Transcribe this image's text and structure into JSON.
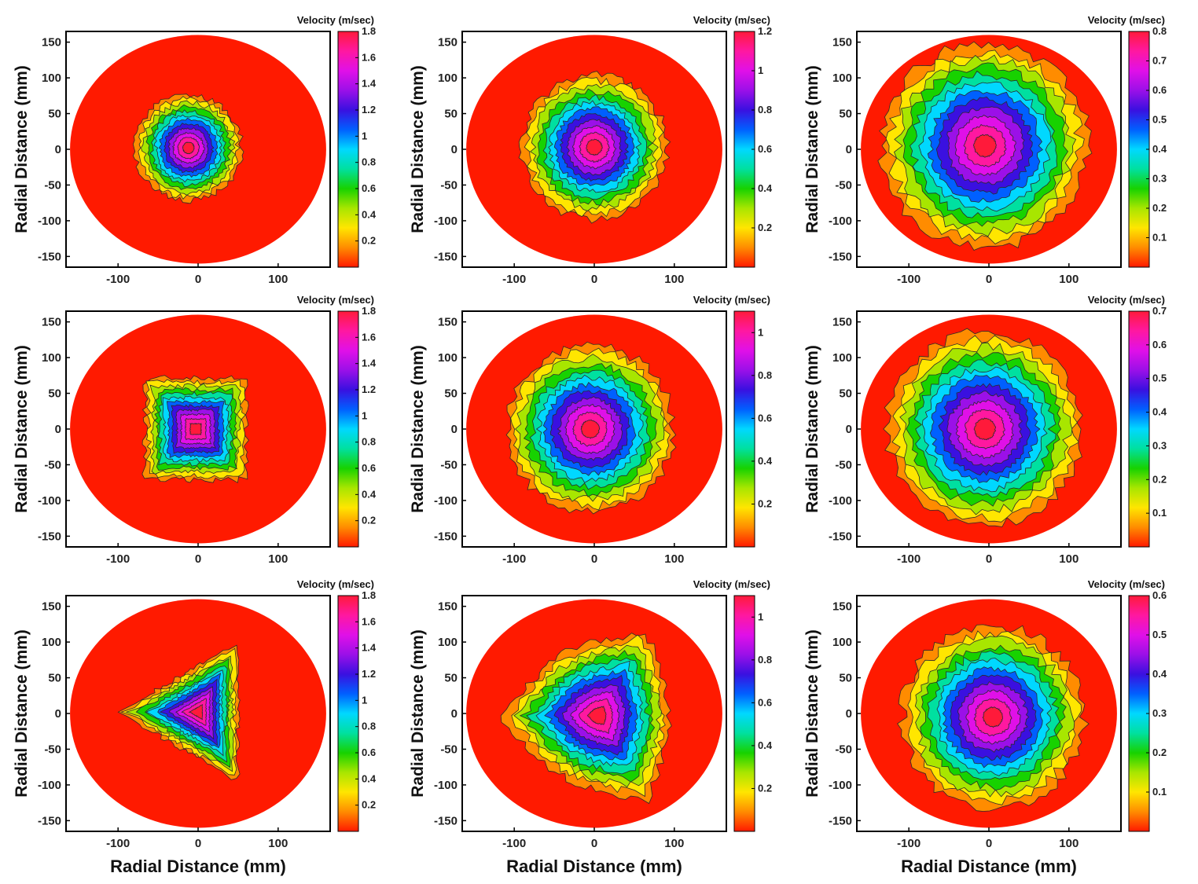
{
  "figure": {
    "x_axis_label": "Radial Distance (mm)",
    "y_axis_label": "Radial Distance (mm)",
    "x_ticks": [
      "-100",
      "0",
      "100"
    ],
    "y_ticks": [
      "150",
      "100",
      "50",
      "0",
      "-50",
      "-100",
      "-150"
    ],
    "colorbar_title": "Velocity (m/sec)"
  },
  "colormap": [
    "#ff1a00",
    "#ff8c00",
    "#ffe600",
    "#a8e600",
    "#17d200",
    "#00e0a0",
    "#00d8ff",
    "#0060ff",
    "#3a10e0",
    "#9b10e8",
    "#e010e8",
    "#ff18a0",
    "#ff1a3a"
  ],
  "chart_data": [
    {
      "type": "heatmap",
      "row": 1,
      "col": 1,
      "shape": "circle",
      "xlabel": "",
      "ylabel": "Radial Distance (mm)",
      "xlim": [
        -165,
        165
      ],
      "ylim": [
        -165,
        165
      ],
      "domain_radius": 160,
      "jet_center": [
        -12,
        2
      ],
      "jet_size": 70,
      "vmax": 1.8,
      "colorbar": {
        "title": "Velocity (m/sec)",
        "range": [
          0,
          1.8
        ],
        "ticks": [
          "0.2",
          "0.4",
          "0.6",
          "0.8",
          "1",
          "1.2",
          "1.4",
          "1.6",
          "1.8"
        ]
      }
    },
    {
      "type": "heatmap",
      "row": 1,
      "col": 2,
      "shape": "circle",
      "xlabel": "",
      "ylabel": "Radial Distance (mm)",
      "xlim": [
        -165,
        165
      ],
      "ylim": [
        -165,
        165
      ],
      "domain_radius": 160,
      "jet_center": [
        0,
        3
      ],
      "jet_size": 95,
      "vmax": 1.2,
      "colorbar": {
        "title": "Velocity (m/sec)",
        "range": [
          0,
          1.2
        ],
        "ticks": [
          "0.2",
          "0.4",
          "0.6",
          "0.8",
          "1",
          "1.2"
        ]
      }
    },
    {
      "type": "heatmap",
      "row": 1,
      "col": 3,
      "shape": "circle",
      "xlabel": "",
      "ylabel": "Radial Distance (mm)",
      "xlim": [
        -165,
        165
      ],
      "ylim": [
        -165,
        165
      ],
      "domain_radius": 160,
      "jet_center": [
        -5,
        5
      ],
      "jet_size": 135,
      "vmax": 0.8,
      "colorbar": {
        "title": "Velocity (m/sec)",
        "range": [
          0,
          0.8
        ],
        "ticks": [
          "0.1",
          "0.2",
          "0.3",
          "0.4",
          "0.5",
          "0.6",
          "0.7",
          "0.8"
        ]
      }
    },
    {
      "type": "heatmap",
      "row": 2,
      "col": 1,
      "shape": "square",
      "xlabel": "",
      "ylabel": "Radial Distance (mm)",
      "xlim": [
        -165,
        165
      ],
      "ylim": [
        -165,
        165
      ],
      "domain_radius": 160,
      "jet_center": [
        -3,
        0
      ],
      "jet_size": 72,
      "vmax": 1.8,
      "colorbar": {
        "title": "Velocity (m/sec)",
        "range": [
          0,
          1.8
        ],
        "ticks": [
          "0.2",
          "0.4",
          "0.6",
          "0.8",
          "1",
          "1.2",
          "1.4",
          "1.6",
          "1.8"
        ]
      }
    },
    {
      "type": "heatmap",
      "row": 2,
      "col": 2,
      "shape": "circle",
      "xlabel": "",
      "ylabel": "Radial Distance (mm)",
      "xlim": [
        -165,
        165
      ],
      "ylim": [
        -165,
        165
      ],
      "domain_radius": 160,
      "jet_center": [
        -5,
        0
      ],
      "jet_size": 110,
      "vmax": 1.1,
      "colorbar": {
        "title": "Velocity (m/sec)",
        "range": [
          0,
          1.1
        ],
        "ticks": [
          "0.2",
          "0.4",
          "0.6",
          "0.8",
          "1"
        ]
      }
    },
    {
      "type": "heatmap",
      "row": 2,
      "col": 3,
      "shape": "circle",
      "xlabel": "",
      "ylabel": "Radial Distance (mm)",
      "xlim": [
        -165,
        165
      ],
      "ylim": [
        -165,
        165
      ],
      "domain_radius": 160,
      "jet_center": [
        -5,
        0
      ],
      "jet_size": 128,
      "vmax": 0.7,
      "colorbar": {
        "title": "Velocity (m/sec)",
        "range": [
          0,
          0.7
        ],
        "ticks": [
          "0.1",
          "0.2",
          "0.3",
          "0.4",
          "0.5",
          "0.6",
          "0.7"
        ]
      }
    },
    {
      "type": "heatmap",
      "row": 3,
      "col": 1,
      "shape": "triangle",
      "xlabel": "Radial Distance (mm)",
      "ylabel": "Radial Distance (mm)",
      "xlim": [
        -165,
        165
      ],
      "ylim": [
        -165,
        165
      ],
      "domain_radius": 160,
      "jet_center": [
        0,
        2
      ],
      "jet_size": 85,
      "vmax": 1.8,
      "colorbar": {
        "title": "Velocity (m/sec)",
        "range": [
          0,
          1.8
        ],
        "ticks": [
          "0.2",
          "0.4",
          "0.6",
          "0.8",
          "1",
          "1.2",
          "1.4",
          "1.6",
          "1.8"
        ]
      }
    },
    {
      "type": "heatmap",
      "row": 3,
      "col": 2,
      "shape": "triangle-soft",
      "xlabel": "Radial Distance (mm)",
      "ylabel": "Radial Distance (mm)",
      "xlim": [
        -165,
        165
      ],
      "ylim": [
        -165,
        165
      ],
      "domain_radius": 160,
      "jet_center": [
        5,
        -3
      ],
      "jet_size": 105,
      "vmax": 1.1,
      "colorbar": {
        "title": "Velocity (m/sec)",
        "range": [
          0,
          1.1
        ],
        "ticks": [
          "0.2",
          "0.4",
          "0.6",
          "0.8",
          "1"
        ]
      }
    },
    {
      "type": "heatmap",
      "row": 3,
      "col": 3,
      "shape": "circle",
      "xlabel": "Radial Distance (mm)",
      "ylabel": "Radial Distance (mm)",
      "xlim": [
        -165,
        165
      ],
      "ylim": [
        -165,
        165
      ],
      "domain_radius": 160,
      "jet_center": [
        5,
        -5
      ],
      "jet_size": 120,
      "vmax": 0.6,
      "colorbar": {
        "title": "Velocity (m/sec)",
        "range": [
          0,
          0.6
        ],
        "ticks": [
          "0.1",
          "0.2",
          "0.3",
          "0.4",
          "0.5",
          "0.6"
        ]
      }
    }
  ]
}
